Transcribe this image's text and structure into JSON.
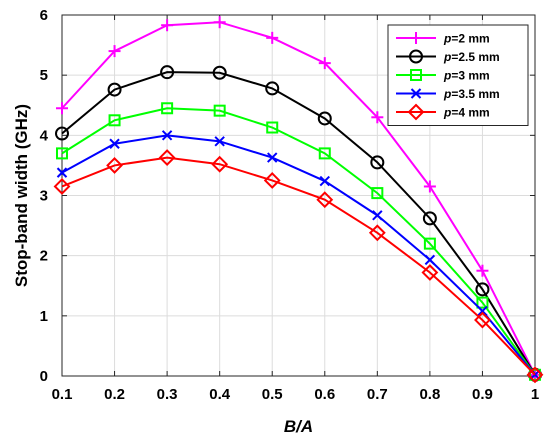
{
  "chart_data": {
    "type": "line",
    "xlabel": "B/A",
    "ylabel": "Stop-band width (GHz)",
    "xlim": [
      0.1,
      1
    ],
    "ylim": [
      0,
      6
    ],
    "x_ticks": [
      "0.1",
      "0.2",
      "0.3",
      "0.4",
      "0.5",
      "0.6",
      "0.7",
      "0.8",
      "0.9",
      "1"
    ],
    "y_ticks": [
      "0",
      "1",
      "2",
      "3",
      "4",
      "5",
      "6"
    ],
    "grid": true,
    "legend_position": "top-right",
    "x": [
      0.1,
      0.2,
      0.3,
      0.4,
      0.5,
      0.6,
      0.7,
      0.8,
      0.9,
      1.0
    ],
    "series": [
      {
        "name": "p=2 mm",
        "name_var": "p",
        "name_rest": "=2 mm",
        "color": "#ff00ff",
        "marker": "plus",
        "values": [
          4.45,
          5.4,
          5.83,
          5.88,
          5.62,
          5.2,
          4.3,
          3.15,
          1.75,
          0.02
        ]
      },
      {
        "name": "p=2.5 mm",
        "name_var": "p",
        "name_rest": "=2.5 mm",
        "color": "#000000",
        "marker": "circle",
        "values": [
          4.03,
          4.76,
          5.05,
          5.04,
          4.78,
          4.28,
          3.55,
          2.62,
          1.44,
          0.02
        ]
      },
      {
        "name": "p=3 mm",
        "name_var": "p",
        "name_rest": "=3 mm",
        "color": "#00ff00",
        "marker": "square",
        "values": [
          3.7,
          4.25,
          4.45,
          4.41,
          4.13,
          3.7,
          3.04,
          2.2,
          1.22,
          0.02
        ]
      },
      {
        "name": "p=3.5 mm",
        "name_var": "p",
        "name_rest": "=3.5 mm",
        "color": "#0000ff",
        "marker": "x",
        "values": [
          3.38,
          3.86,
          4.0,
          3.9,
          3.63,
          3.24,
          2.67,
          1.93,
          1.08,
          0.02
        ]
      },
      {
        "name": "p=4 mm",
        "name_var": "p",
        "name_rest": "=4 mm",
        "color": "#ff0000",
        "marker": "diamond",
        "values": [
          3.15,
          3.5,
          3.63,
          3.52,
          3.25,
          2.93,
          2.38,
          1.72,
          0.93,
          0.02
        ]
      }
    ]
  }
}
